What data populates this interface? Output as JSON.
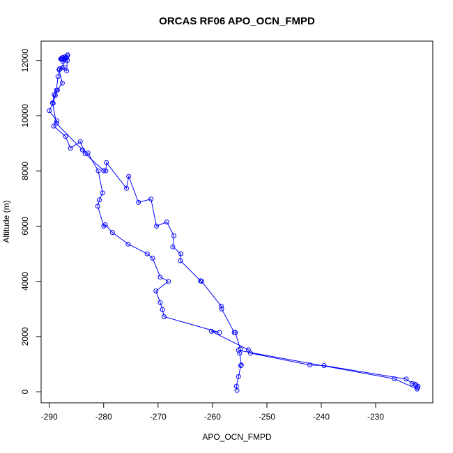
{
  "chart_data": {
    "type": "line",
    "title": "ORCAS RF06 APO_OCN_FMPD",
    "xlabel": "APO_OCN_FMPD",
    "ylabel": "Altitude (m)",
    "xlim": [
      -291.5,
      -219.5
    ],
    "ylim": [
      -400,
      12700
    ],
    "xticks": [
      -290,
      -280,
      -270,
      -260,
      -250,
      -240,
      -230
    ],
    "yticks": [
      0,
      2000,
      4000,
      6000,
      8000,
      10000,
      12000
    ],
    "grid": false,
    "marker": "open-circle",
    "color": "#0000ff",
    "series": [
      {
        "points": [
          [
            -255.5,
            50
          ],
          [
            -255.6,
            200
          ],
          [
            -255.2,
            550
          ],
          [
            -254.8,
            950
          ],
          [
            -254.7,
            970
          ],
          [
            -255,
            1400
          ],
          [
            -254.9,
            1550
          ],
          [
            -255.8,
            2150
          ],
          [
            -256,
            2150
          ],
          [
            -258.3,
            3000
          ],
          [
            -258.4,
            3100
          ],
          [
            -262,
            4000
          ],
          [
            -262.2,
            4020
          ],
          [
            -265.9,
            4750
          ],
          [
            -265.8,
            5000
          ],
          [
            -267.3,
            5250
          ],
          [
            -267.1,
            5650
          ],
          [
            -268.4,
            6150
          ],
          [
            -270.3,
            6000
          ],
          [
            -271.3,
            6980
          ],
          [
            -273.6,
            6860
          ],
          [
            -275.4,
            7800
          ],
          [
            -275.8,
            7370
          ],
          [
            -279.5,
            8300
          ],
          [
            -279.6,
            8000
          ],
          [
            -280,
            8010
          ],
          [
            -283.4,
            8620
          ],
          [
            -284.3,
            9060
          ],
          [
            -286.1,
            8820
          ],
          [
            -287,
            9250
          ],
          [
            -289.2,
            9620
          ],
          [
            -288.6,
            9810
          ],
          [
            -290,
            10180
          ],
          [
            -289.3,
            10450
          ],
          [
            -288.9,
            10730
          ],
          [
            -288.5,
            10930
          ],
          [
            -287.6,
            11180
          ],
          [
            -288.2,
            11660
          ],
          [
            -287.4,
            11760
          ],
          [
            -287.5,
            11960
          ],
          [
            -287.7,
            12060
          ],
          [
            -287.8,
            12070
          ],
          [
            -287.5,
            12110
          ],
          [
            -287.1,
            12130
          ],
          [
            -286.7,
            12160
          ],
          [
            -286.6,
            12200
          ],
          [
            -286.8,
            12100
          ],
          [
            -287.1,
            12080
          ],
          [
            -287.6,
            12040
          ],
          [
            -287.9,
            12050
          ],
          [
            -287.2,
            12020
          ],
          [
            -286.7,
            12000
          ],
          [
            -286.8,
            11620
          ],
          [
            -287.6,
            11720
          ],
          [
            -288.1,
            11700
          ],
          [
            -288.4,
            11420
          ],
          [
            -288.7,
            10920
          ],
          [
            -289.1,
            10760
          ],
          [
            -289.4,
            10460
          ],
          [
            -288.7,
            9720
          ],
          [
            -283.9,
            8760
          ],
          [
            -282.9,
            8650
          ],
          [
            -281,
            8000
          ],
          [
            -280.2,
            7200
          ],
          [
            -280.8,
            6950
          ],
          [
            -281.1,
            6720
          ],
          [
            -280,
            6000
          ],
          [
            -279.7,
            6050
          ],
          [
            -278.4,
            5770
          ],
          [
            -275.5,
            5350
          ],
          [
            -272,
            5000
          ],
          [
            -271,
            4840
          ],
          [
            -269.6,
            4150
          ],
          [
            -268.1,
            4000
          ],
          [
            -270.4,
            3650
          ],
          [
            -269.6,
            3230
          ],
          [
            -269.2,
            2980
          ],
          [
            -268.9,
            2720
          ],
          [
            -258.7,
            2150
          ],
          [
            -260.2,
            2190
          ],
          [
            -253.4,
            1520
          ],
          [
            -253,
            1400
          ],
          [
            -242.1,
            970
          ],
          [
            -239.5,
            950
          ],
          [
            -224.4,
            460
          ],
          [
            -223.3,
            300
          ],
          [
            -222.8,
            280
          ],
          [
            -222.6,
            240
          ],
          [
            -222.2,
            200
          ],
          [
            -222.3,
            150
          ],
          [
            -222.4,
            100
          ],
          [
            -226.6,
            470
          ],
          [
            -255.2,
            1500
          ]
        ]
      }
    ]
  }
}
